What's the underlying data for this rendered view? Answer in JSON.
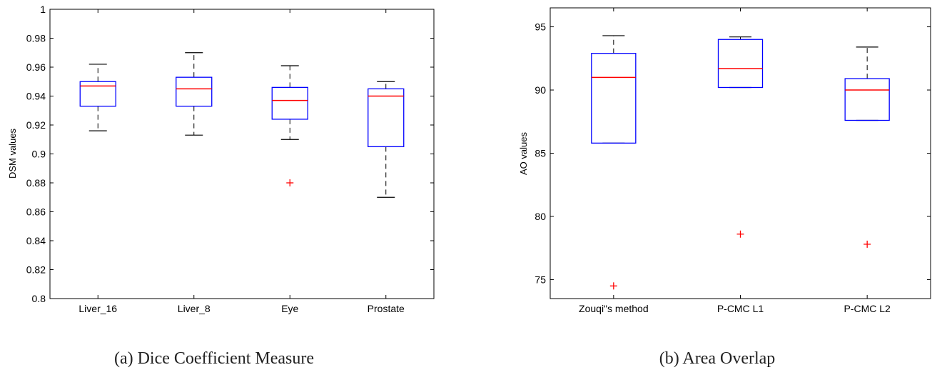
{
  "chart_data": [
    {
      "type": "boxplot",
      "caption": "(a) Dice Coefficient Measure",
      "ylabel": "DSM values",
      "ylim": [
        0.8,
        1.0
      ],
      "yticks": [
        0.8,
        0.82,
        0.84,
        0.86,
        0.88,
        0.9,
        0.92,
        0.94,
        0.96,
        0.98,
        1
      ],
      "ytick_labels": [
        "0.8",
        "0.82",
        "0.84",
        "0.86",
        "0.88",
        "0.9",
        "0.92",
        "0.94",
        "0.96",
        "0.98",
        "1"
      ],
      "categories": [
        "Liver_16",
        "Liver_8",
        "Eye",
        "Prostate"
      ],
      "boxes": [
        {
          "whisker_low": 0.916,
          "q1": 0.933,
          "median": 0.947,
          "q3": 0.95,
          "whisker_high": 0.962,
          "outliers": []
        },
        {
          "whisker_low": 0.913,
          "q1": 0.933,
          "median": 0.945,
          "q3": 0.953,
          "whisker_high": 0.97,
          "outliers": []
        },
        {
          "whisker_low": 0.91,
          "q1": 0.924,
          "median": 0.937,
          "q3": 0.946,
          "whisker_high": 0.961,
          "outliers": [
            0.88
          ]
        },
        {
          "whisker_low": 0.87,
          "q1": 0.905,
          "median": 0.94,
          "q3": 0.945,
          "whisker_high": 0.95,
          "outliers": []
        }
      ],
      "colors": {
        "box": "#0000ff",
        "median": "#ff0000",
        "whisker": "#000000",
        "outlier": "#ff0000"
      }
    },
    {
      "type": "boxplot",
      "caption": "(b) Area Overlap",
      "ylabel": "AO values",
      "ylim": [
        73.5,
        96.5
      ],
      "yticks": [
        75,
        80,
        85,
        90,
        95
      ],
      "ytick_labels": [
        "75",
        "80",
        "85",
        "90",
        "95"
      ],
      "categories": [
        "Zouqi\"s method",
        "P-CMC L1",
        "P-CMC L2"
      ],
      "boxes": [
        {
          "whisker_low": 85.8,
          "q1": 85.8,
          "median": 91.0,
          "q3": 92.9,
          "whisker_high": 94.3,
          "outliers": [
            74.5
          ]
        },
        {
          "whisker_low": 90.2,
          "q1": 90.2,
          "median": 91.7,
          "q3": 94.0,
          "whisker_high": 94.2,
          "outliers": [
            78.6
          ]
        },
        {
          "whisker_low": 87.6,
          "q1": 87.6,
          "median": 90.0,
          "q3": 90.9,
          "whisker_high": 93.4,
          "outliers": [
            77.8
          ]
        }
      ],
      "colors": {
        "box": "#0000ff",
        "median": "#ff0000",
        "whisker": "#000000",
        "outlier": "#ff0000"
      }
    }
  ]
}
